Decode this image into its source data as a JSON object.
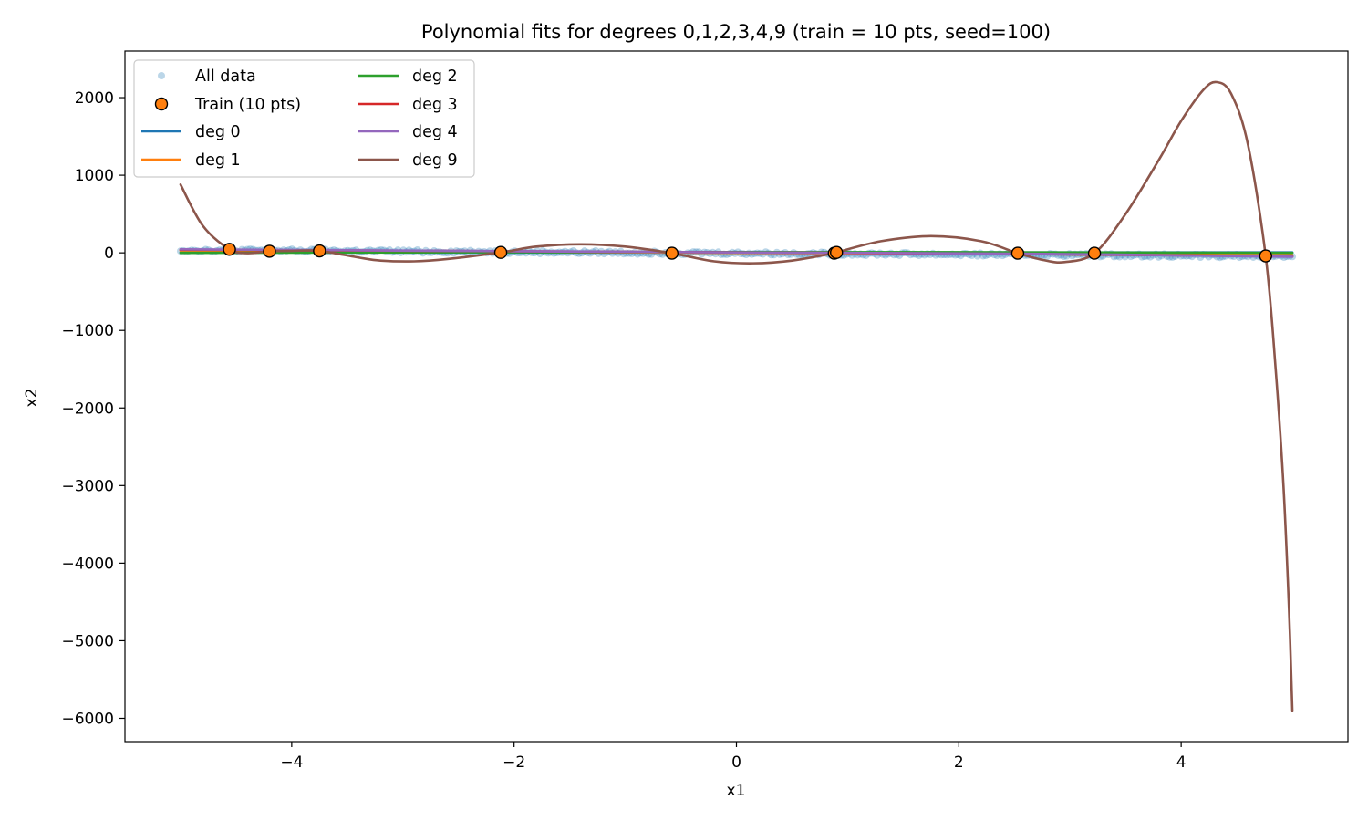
{
  "chart_data": {
    "type": "line",
    "title": "Polynomial fits for degrees 0,1,2,3,4,9 (train = 10 pts, seed=100)",
    "xlabel": "x1",
    "ylabel": "x2",
    "xlim": [
      -5.5,
      5.5
    ],
    "ylim": [
      -6300,
      2600
    ],
    "x_ticks": [
      -4,
      -2,
      0,
      2,
      4
    ],
    "y_ticks": [
      2000,
      1000,
      0,
      -1000,
      -2000,
      -3000,
      -4000,
      -5000,
      -6000
    ],
    "x_tick_labels": [
      "−4",
      "−2",
      "0",
      "2",
      "4"
    ],
    "y_tick_labels": [
      "2000",
      "1000",
      "0",
      "−1000",
      "−2000",
      "−3000",
      "−4000",
      "−5000",
      "−6000"
    ],
    "grid": false,
    "legend_placement": "top-left",
    "all_data": {
      "name": "All data",
      "color": "#1f77b4",
      "x_range": [
        -5,
        5
      ],
      "trend_start": 35,
      "trend_end": -45,
      "noise": 20
    },
    "train": {
      "name": "Train (10 pts)",
      "color": "#ff7f0e",
      "x": [
        -4.56,
        -4.2,
        -3.75,
        -2.12,
        -0.58,
        0.88,
        0.9,
        2.53,
        3.22,
        4.76
      ],
      "y": [
        45,
        20,
        25,
        5,
        -5,
        -5,
        5,
        -5,
        -5,
        -40
      ]
    },
    "series": [
      {
        "name": "deg 0",
        "color": "#1f77b4",
        "degree": 0,
        "x": [
          -5,
          5
        ],
        "y": [
          5,
          5
        ]
      },
      {
        "name": "deg 1",
        "color": "#ff7f0e",
        "degree": 1,
        "x": [
          -5,
          5
        ],
        "y": [
          30,
          -30
        ]
      },
      {
        "name": "deg 2",
        "color": "#2ca02c",
        "degree": 2,
        "x": [
          -5,
          0,
          5
        ],
        "y": [
          0,
          10,
          0
        ]
      },
      {
        "name": "deg 3",
        "color": "#d62728",
        "degree": 3,
        "x": [
          -5,
          -2,
          2,
          5
        ],
        "y": [
          40,
          20,
          -10,
          -45
        ]
      },
      {
        "name": "deg 4",
        "color": "#9467bd",
        "degree": 4,
        "x": [
          -5,
          -2.5,
          0,
          2.5,
          5
        ],
        "y": [
          45,
          25,
          5,
          -10,
          -50
        ]
      },
      {
        "name": "deg 9",
        "color": "#8c564b",
        "degree": 9,
        "x": [
          -5.0,
          -4.8,
          -4.56,
          -4.4,
          -4.2,
          -4.0,
          -3.75,
          -3.4,
          -3.2,
          -2.9,
          -2.6,
          -2.12,
          -1.8,
          -1.4,
          -1.0,
          -0.58,
          -0.2,
          0.15,
          0.5,
          0.88,
          0.9,
          1.3,
          1.75,
          2.2,
          2.53,
          2.75,
          2.95,
          3.22,
          3.5,
          3.8,
          4.0,
          4.2,
          4.32,
          4.45,
          4.6,
          4.76,
          4.85,
          4.92,
          4.97,
          5.0
        ],
        "y": [
          880,
          350,
          45,
          -5,
          20,
          25,
          25,
          -60,
          -100,
          -110,
          -80,
          5,
          80,
          110,
          80,
          -5,
          -110,
          -135,
          -100,
          -5,
          5,
          150,
          215,
          150,
          -5,
          -90,
          -120,
          -5,
          500,
          1200,
          1700,
          2100,
          2200,
          2050,
          1400,
          -40,
          -1500,
          -3000,
          -4600,
          -5900
        ]
      }
    ]
  }
}
